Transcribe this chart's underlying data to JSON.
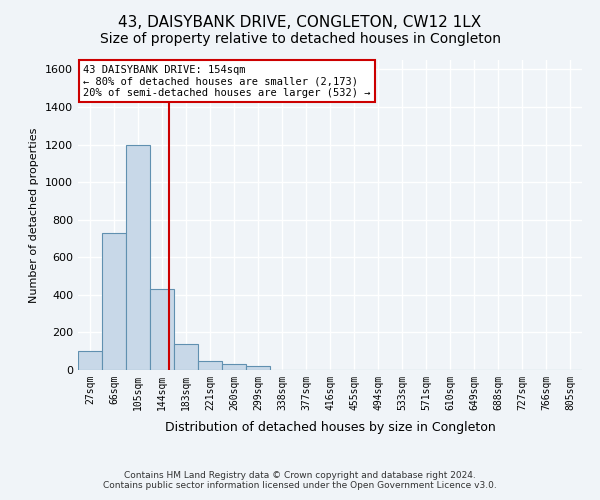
{
  "title": "43, DAISYBANK DRIVE, CONGLETON, CW12 1LX",
  "subtitle": "Size of property relative to detached houses in Congleton",
  "xlabel": "Distribution of detached houses by size in Congleton",
  "ylabel": "Number of detached properties",
  "footer_line1": "Contains HM Land Registry data © Crown copyright and database right 2024.",
  "footer_line2": "Contains public sector information licensed under the Open Government Licence v3.0.",
  "bin_labels": [
    "27sqm",
    "66sqm",
    "105sqm",
    "144sqm",
    "183sqm",
    "221sqm",
    "260sqm",
    "299sqm",
    "338sqm",
    "377sqm",
    "416sqm",
    "455sqm",
    "494sqm",
    "533sqm",
    "571sqm",
    "610sqm",
    "649sqm",
    "688sqm",
    "727sqm",
    "766sqm",
    "805sqm"
  ],
  "bar_values": [
    100,
    730,
    1200,
    430,
    140,
    50,
    30,
    20,
    0,
    0,
    0,
    0,
    0,
    0,
    0,
    0,
    0,
    0,
    0,
    0,
    0
  ],
  "bar_color": "#c8d8e8",
  "bar_edge_color": "#6090b0",
  "ylim": [
    0,
    1650
  ],
  "yticks": [
    0,
    200,
    400,
    600,
    800,
    1000,
    1200,
    1400,
    1600
  ],
  "property_line_x": 3.3,
  "property_line_color": "#cc0000",
  "annotation_text": "43 DAISYBANK DRIVE: 154sqm\n← 80% of detached houses are smaller (2,173)\n20% of semi-detached houses are larger (532) →",
  "annotation_box_color": "#cc0000",
  "background_color": "#f0f4f8",
  "grid_color": "#ffffff",
  "title_fontsize": 11,
  "subtitle_fontsize": 10
}
